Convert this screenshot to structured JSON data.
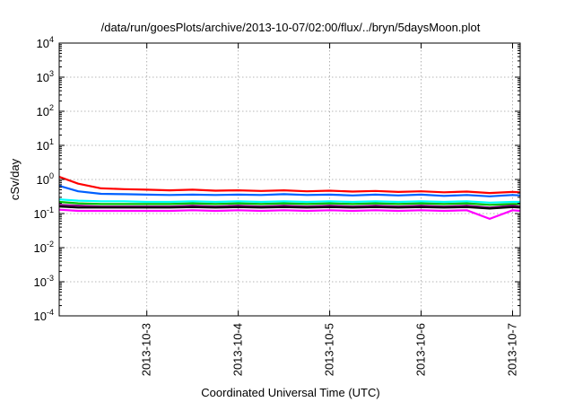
{
  "chart_data": {
    "type": "line",
    "title": "/data/run/goesPlots/archive/2013-10-07/02:00/flux/../bryn/5daysMoon.plot",
    "xlabel": "Coordinated Universal Time (UTC)",
    "ylabel": "cSv/day",
    "yscale": "log",
    "ylim": [
      0.0001,
      10000
    ],
    "y_ticks": [
      {
        "base": "10",
        "exp": "-4"
      },
      {
        "base": "10",
        "exp": "-3"
      },
      {
        "base": "10",
        "exp": "-2"
      },
      {
        "base": "10",
        "exp": "-1"
      },
      {
        "base": "10",
        "exp": "0"
      },
      {
        "base": "10",
        "exp": "1"
      },
      {
        "base": "10",
        "exp": "2"
      },
      {
        "base": "10",
        "exp": "3"
      },
      {
        "base": "10",
        "exp": "4"
      }
    ],
    "x_ticks": [
      "2013-10-3",
      "2013-10-4",
      "2013-10-5",
      "2013-10-6",
      "2013-10-7"
    ],
    "xlim": [
      "2013-10-02T01:00",
      "2013-10-07T02:00"
    ],
    "grid": true,
    "x": [
      "2013-10-02T01:00",
      "2013-10-02T06:00",
      "2013-10-02T12:00",
      "2013-10-02T18:00",
      "2013-10-03T00:00",
      "2013-10-03T06:00",
      "2013-10-03T12:00",
      "2013-10-03T18:00",
      "2013-10-04T00:00",
      "2013-10-04T06:00",
      "2013-10-04T12:00",
      "2013-10-04T18:00",
      "2013-10-05T00:00",
      "2013-10-05T06:00",
      "2013-10-05T12:00",
      "2013-10-05T18:00",
      "2013-10-06T00:00",
      "2013-10-06T06:00",
      "2013-10-06T12:00",
      "2013-10-06T18:00",
      "2013-10-07T00:00",
      "2013-10-07T02:00"
    ],
    "series": [
      {
        "color": "#ff0000",
        "values": [
          1.2,
          0.75,
          0.55,
          0.52,
          0.5,
          0.48,
          0.5,
          0.47,
          0.48,
          0.46,
          0.48,
          0.45,
          0.47,
          0.44,
          0.46,
          0.43,
          0.45,
          0.42,
          0.44,
          0.4,
          0.43,
          0.42
        ]
      },
      {
        "color": "#0060ff",
        "values": [
          0.65,
          0.45,
          0.38,
          0.37,
          0.36,
          0.35,
          0.36,
          0.35,
          0.36,
          0.35,
          0.37,
          0.35,
          0.36,
          0.34,
          0.36,
          0.34,
          0.36,
          0.33,
          0.35,
          0.32,
          0.35,
          0.34
        ]
      },
      {
        "color": "#00ffff",
        "values": [
          0.26,
          0.24,
          0.23,
          0.23,
          0.22,
          0.22,
          0.23,
          0.22,
          0.23,
          0.22,
          0.23,
          0.22,
          0.23,
          0.22,
          0.23,
          0.22,
          0.23,
          0.22,
          0.23,
          0.21,
          0.22,
          0.22
        ]
      },
      {
        "color": "#00c000",
        "values": [
          0.22,
          0.2,
          0.19,
          0.19,
          0.19,
          0.19,
          0.2,
          0.19,
          0.2,
          0.19,
          0.2,
          0.19,
          0.2,
          0.19,
          0.2,
          0.19,
          0.2,
          0.19,
          0.2,
          0.18,
          0.19,
          0.19
        ]
      },
      {
        "color": "#800080",
        "values": [
          0.18,
          0.17,
          0.16,
          0.16,
          0.16,
          0.16,
          0.17,
          0.16,
          0.17,
          0.16,
          0.17,
          0.16,
          0.17,
          0.16,
          0.17,
          0.16,
          0.17,
          0.16,
          0.17,
          0.15,
          0.17,
          0.16
        ]
      },
      {
        "color": "#000000",
        "values": [
          0.16,
          0.15,
          0.15,
          0.15,
          0.15,
          0.15,
          0.155,
          0.15,
          0.155,
          0.15,
          0.155,
          0.15,
          0.155,
          0.15,
          0.155,
          0.15,
          0.155,
          0.15,
          0.155,
          0.14,
          0.155,
          0.15
        ]
      },
      {
        "color": "#ff00ff",
        "values": [
          0.13,
          0.12,
          0.12,
          0.12,
          0.12,
          0.12,
          0.125,
          0.12,
          0.125,
          0.12,
          0.125,
          0.12,
          0.125,
          0.12,
          0.125,
          0.12,
          0.125,
          0.12,
          0.125,
          0.07,
          0.125,
          0.12
        ]
      }
    ]
  }
}
